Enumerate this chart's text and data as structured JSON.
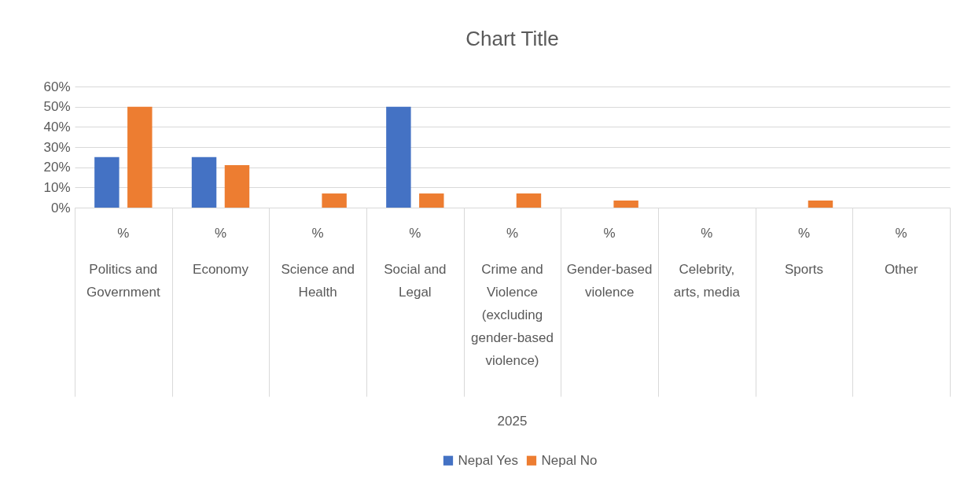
{
  "chart_data": {
    "type": "bar",
    "title": "Chart Title",
    "xlabel": "2025",
    "categories": [
      "Politics and Government",
      "Economy",
      "Science and Health",
      "Social and Legal",
      "Crime and Violence (excluding gender-based violence)",
      "Gender-based violence",
      "Celebrity, arts, media",
      "Sports",
      "Other"
    ],
    "annotations": [
      "%",
      "%",
      "%",
      "%",
      "%",
      "%",
      "%",
      "%",
      "%"
    ],
    "series": [
      {
        "name": "Nepal Yes",
        "color": "#4472c4",
        "values": [
          25,
          25,
          null,
          50,
          null,
          null,
          null,
          null,
          null
        ]
      },
      {
        "name": "Nepal No",
        "color": "#ed7d31",
        "values": [
          50,
          21,
          7,
          7,
          7,
          3.5,
          null,
          3.5,
          null
        ]
      }
    ],
    "ylim": [
      0,
      60
    ],
    "yticks": [
      {
        "value": 0,
        "label": "0%"
      },
      {
        "value": 10,
        "label": "10%"
      },
      {
        "value": 20,
        "label": "20%"
      },
      {
        "value": 30,
        "label": "30%"
      },
      {
        "value": 40,
        "label": "40%"
      },
      {
        "value": 50,
        "label": "50%"
      },
      {
        "value": 60,
        "label": "60%"
      }
    ],
    "grid": "y",
    "legend": "bottom"
  }
}
